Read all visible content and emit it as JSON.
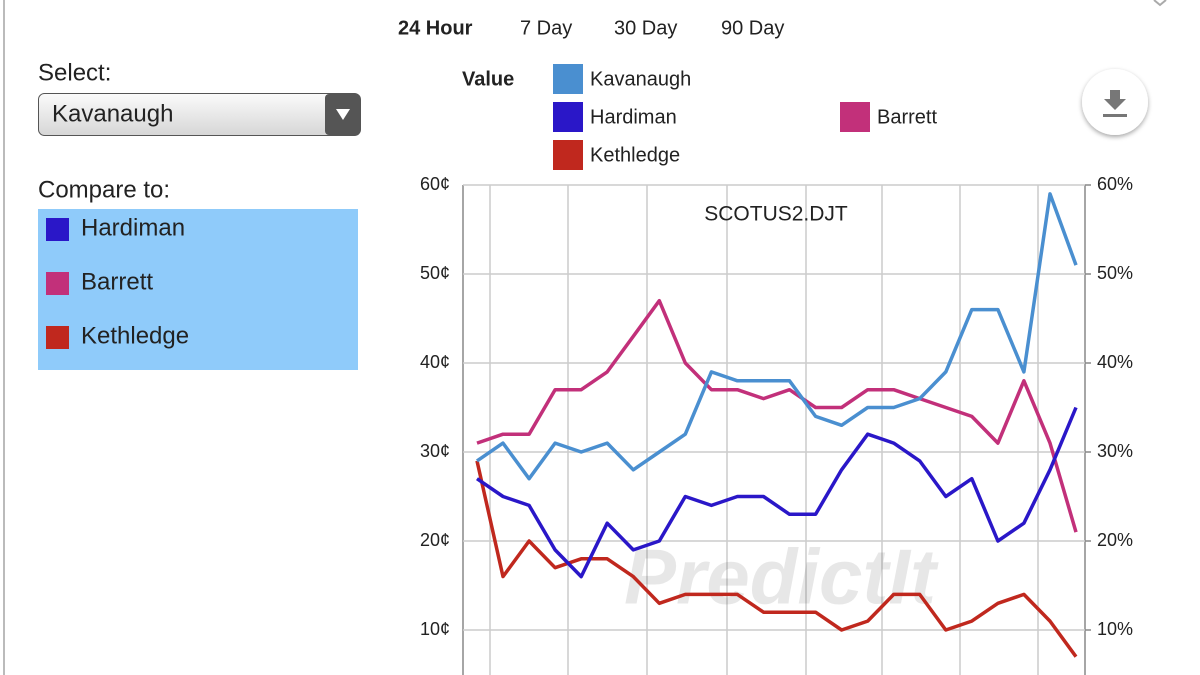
{
  "tabs": [
    "24 Hour",
    "7 Day",
    "30 Day",
    "90 Day"
  ],
  "select_label": "Select:",
  "compare_label": "Compare to:",
  "chart_data": {
    "type": "line",
    "title": "SCOTUS2.DJT",
    "legend_title": "Value",
    "watermark": "PredictIt",
    "categories": [
      null,
      null,
      null,
      null,
      null,
      null,
      null,
      null,
      null,
      null,
      null,
      null,
      null,
      null,
      null,
      null,
      null,
      null,
      null,
      null,
      null,
      null,
      null,
      null
    ],
    "series": [
      {
        "name": "Kavanaugh",
        "color": "#4a8fd0",
        "values": [
          29,
          31,
          27,
          31,
          30,
          31,
          28,
          30,
          32,
          39,
          38,
          38,
          38,
          34,
          33,
          35,
          35,
          36,
          39,
          46,
          46,
          39,
          59,
          51
        ]
      },
      {
        "name": "Hardiman",
        "color": "#2a17c8",
        "values": [
          27,
          25,
          24,
          19,
          16,
          22,
          19,
          20,
          25,
          24,
          25,
          25,
          23,
          23,
          28,
          32,
          31,
          29,
          25,
          27,
          20,
          22,
          28,
          35
        ]
      },
      {
        "name": "Barrett",
        "color": "#c2307a",
        "values": [
          31,
          32,
          32,
          37,
          37,
          39,
          43,
          47,
          40,
          37,
          37,
          36,
          37,
          35,
          35,
          37,
          37,
          36,
          35,
          34,
          31,
          38,
          31,
          21
        ]
      },
      {
        "name": "Kethledge",
        "color": "#c0281e",
        "values": [
          29,
          16,
          20,
          17,
          18,
          18,
          16,
          13,
          14,
          14,
          14,
          12,
          12,
          12,
          10,
          11,
          14,
          14,
          10,
          11,
          13,
          14,
          11,
          7
        ]
      }
    ],
    "ylim": [
      0,
      60
    ],
    "yticks": [
      {
        "value": 10,
        "label": "10¢"
      },
      {
        "value": 20,
        "label": "20¢"
      },
      {
        "value": 30,
        "label": "30¢"
      },
      {
        "value": 40,
        "label": "40¢"
      },
      {
        "value": 50,
        "label": "50¢"
      },
      {
        "value": 60,
        "label": "60¢"
      }
    ],
    "y2lim": [
      0,
      60
    ],
    "y2ticks": [
      {
        "value": 10,
        "label": "10%"
      },
      {
        "value": 20,
        "label": "20%"
      },
      {
        "value": 30,
        "label": "30%"
      },
      {
        "value": 40,
        "label": "40%"
      },
      {
        "value": 50,
        "label": "50%"
      },
      {
        "value": 60,
        "label": "60%"
      }
    ],
    "grid": true
  }
}
